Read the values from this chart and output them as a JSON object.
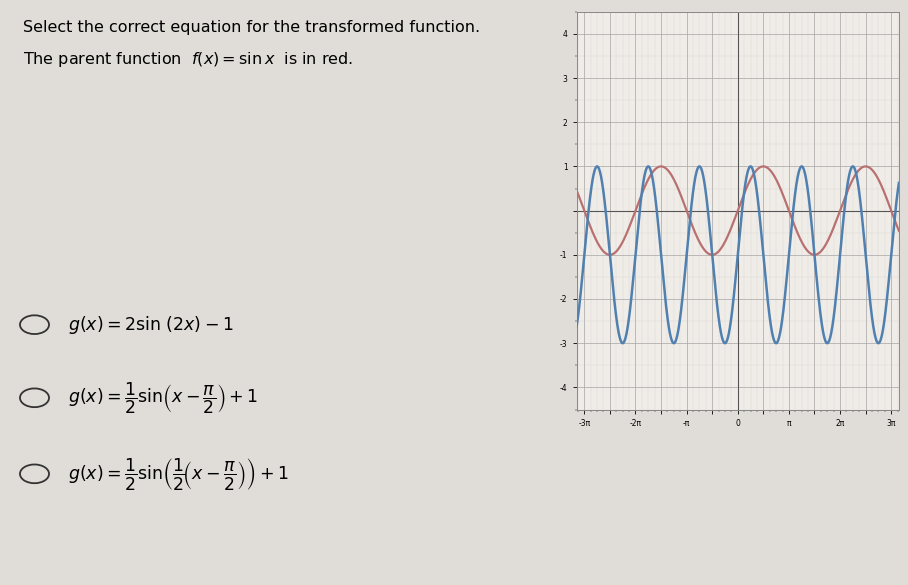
{
  "title_line1": "Select the correct equation for the transformed function.",
  "title_line2": "The parent function  f(x) = sin x  is in red.",
  "graph_xlim": [
    -9.9,
    9.9
  ],
  "graph_ylim": [
    -4.5,
    4.5
  ],
  "red_color": "#b87070",
  "blue_color": "#5080b0",
  "graph_bg": "#f0ede8",
  "page_bg": "#e0ddd8",
  "left_bg": "#dddad5",
  "option1": "g(x) = 2sin (2x) − 1",
  "option2_latex": "$g(x) = \\dfrac{1}{2}\\sin\\!\\left(x - \\dfrac{\\pi}{2}\\right) + 1$",
  "option3_latex": "$g(x) = \\dfrac{1}{2}\\sin\\!\\left(\\dfrac{1}{2}\\!\\left(x - \\dfrac{\\pi}{2}\\right)\\right) + 1$",
  "option1_latex": "$g(x) = 2\\sin\\,(2x) - 1$"
}
